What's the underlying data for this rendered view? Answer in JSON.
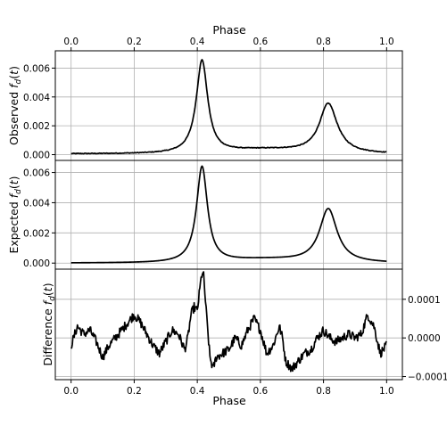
{
  "chart_data": {
    "type": "line",
    "x_label_top": "Phase",
    "x_label_bottom": "Phase",
    "x_range": [
      -0.05,
      1.05
    ],
    "x_ticks": [
      0.0,
      0.2,
      0.4,
      0.6,
      0.8,
      1.0
    ],
    "x_tick_labels": [
      "0.0",
      "0.2",
      "0.4",
      "0.6",
      "0.8",
      "1.0"
    ],
    "grid": true,
    "panels": [
      {
        "id": "observed",
        "ylabel": "Observed f_d(t)",
        "ylabel_text": "Observed",
        "ylabel_math": "f",
        "ylabel_sub": "d",
        "ylabel_arg": "(t)",
        "y_range": [
          -0.0004,
          0.0072
        ],
        "y_ticks": [
          0.0,
          0.002,
          0.004,
          0.006
        ],
        "y_tick_labels": [
          "0.000",
          "0.002",
          "0.004",
          "0.006"
        ],
        "y_axis_side": "left",
        "curve": {
          "base": 5e-05,
          "peaks": [
            {
              "center": 0.415,
              "amplitude": 0.0065,
              "width": 0.022
            },
            {
              "center": 0.815,
              "amplitude": 0.0035,
              "width": 0.035
            }
          ],
          "plateau": {
            "from": 0.45,
            "to": 0.78,
            "level": 0.0005
          },
          "noise": 5e-05
        }
      },
      {
        "id": "expected",
        "ylabel": "Expected f_d(t)",
        "ylabel_text": "Expected",
        "ylabel_math": "f",
        "ylabel_sub": "d",
        "ylabel_arg": "(t)",
        "y_range": [
          -0.0004,
          0.0068
        ],
        "y_ticks": [
          0.0,
          0.002,
          0.004,
          0.006
        ],
        "y_tick_labels": [
          "0.000",
          "0.002",
          "0.004",
          "0.006"
        ],
        "y_axis_side": "left",
        "curve": {
          "base": 0.0,
          "peaks": [
            {
              "center": 0.415,
              "amplitude": 0.0064,
              "width": 0.021
            },
            {
              "center": 0.815,
              "amplitude": 0.0036,
              "width": 0.034
            }
          ],
          "plateau": {
            "from": 0.45,
            "to": 0.78,
            "level": 0.0004
          },
          "noise": 0.0
        }
      },
      {
        "id": "difference",
        "ylabel": "Difference f_d(t)",
        "ylabel_text": "Difference",
        "ylabel_math": "f",
        "ylabel_sub": "d",
        "ylabel_arg": "(t)",
        "y_range": [
          -0.000108,
          0.000178
        ],
        "y_ticks": [
          -0.0001,
          0.0,
          0.0001
        ],
        "y_tick_labels": [
          "−0.0001",
          "0.0000",
          "0.0001"
        ],
        "y_axis_side": "right",
        "points": [
          [
            0.0,
            -2e-05
          ],
          [
            0.02,
            3e-05
          ],
          [
            0.04,
            1e-05
          ],
          [
            0.06,
            2e-05
          ],
          [
            0.08,
            -1e-05
          ],
          [
            0.1,
            -5e-05
          ],
          [
            0.12,
            -2e-05
          ],
          [
            0.14,
            0.0
          ],
          [
            0.16,
            2e-05
          ],
          [
            0.18,
            4e-05
          ],
          [
            0.2,
            6e-05
          ],
          [
            0.22,
            4e-05
          ],
          [
            0.24,
            1e-05
          ],
          [
            0.26,
            -2e-05
          ],
          [
            0.28,
            -4e-05
          ],
          [
            0.3,
            -1e-05
          ],
          [
            0.32,
            2e-05
          ],
          [
            0.34,
            1e-05
          ],
          [
            0.36,
            -3e-05
          ],
          [
            0.37,
            0.0
          ],
          [
            0.38,
            6e-05
          ],
          [
            0.39,
            8e-05
          ],
          [
            0.4,
            7e-05
          ],
          [
            0.41,
            0.00014
          ],
          [
            0.415,
            0.00017
          ],
          [
            0.42,
            0.00016
          ],
          [
            0.43,
            5e-05
          ],
          [
            0.44,
            -5e-05
          ],
          [
            0.45,
            -8e-05
          ],
          [
            0.46,
            -5e-05
          ],
          [
            0.48,
            -4e-05
          ],
          [
            0.5,
            -3e-05
          ],
          [
            0.52,
            0.0
          ],
          [
            0.54,
            -2e-05
          ],
          [
            0.56,
            2e-05
          ],
          [
            0.58,
            5e-05
          ],
          [
            0.6,
            2e-05
          ],
          [
            0.62,
            -4e-05
          ],
          [
            0.64,
            -2e-05
          ],
          [
            0.66,
            3e-05
          ],
          [
            0.67,
            0.0
          ],
          [
            0.68,
            -6e-05
          ],
          [
            0.7,
            -8e-05
          ],
          [
            0.72,
            -6e-05
          ],
          [
            0.74,
            -4e-05
          ],
          [
            0.76,
            -3e-05
          ],
          [
            0.78,
            0.0
          ],
          [
            0.8,
            2e-05
          ],
          [
            0.82,
            0.0
          ],
          [
            0.84,
            -1e-05
          ],
          [
            0.86,
            0.0
          ],
          [
            0.88,
            1e-05
          ],
          [
            0.9,
            0.0
          ],
          [
            0.92,
            1e-05
          ],
          [
            0.94,
            6e-05
          ],
          [
            0.96,
            3e-05
          ],
          [
            0.98,
            -4e-05
          ],
          [
            1.0,
            -2e-05
          ]
        ],
        "noise": 1.2e-05
      }
    ]
  }
}
